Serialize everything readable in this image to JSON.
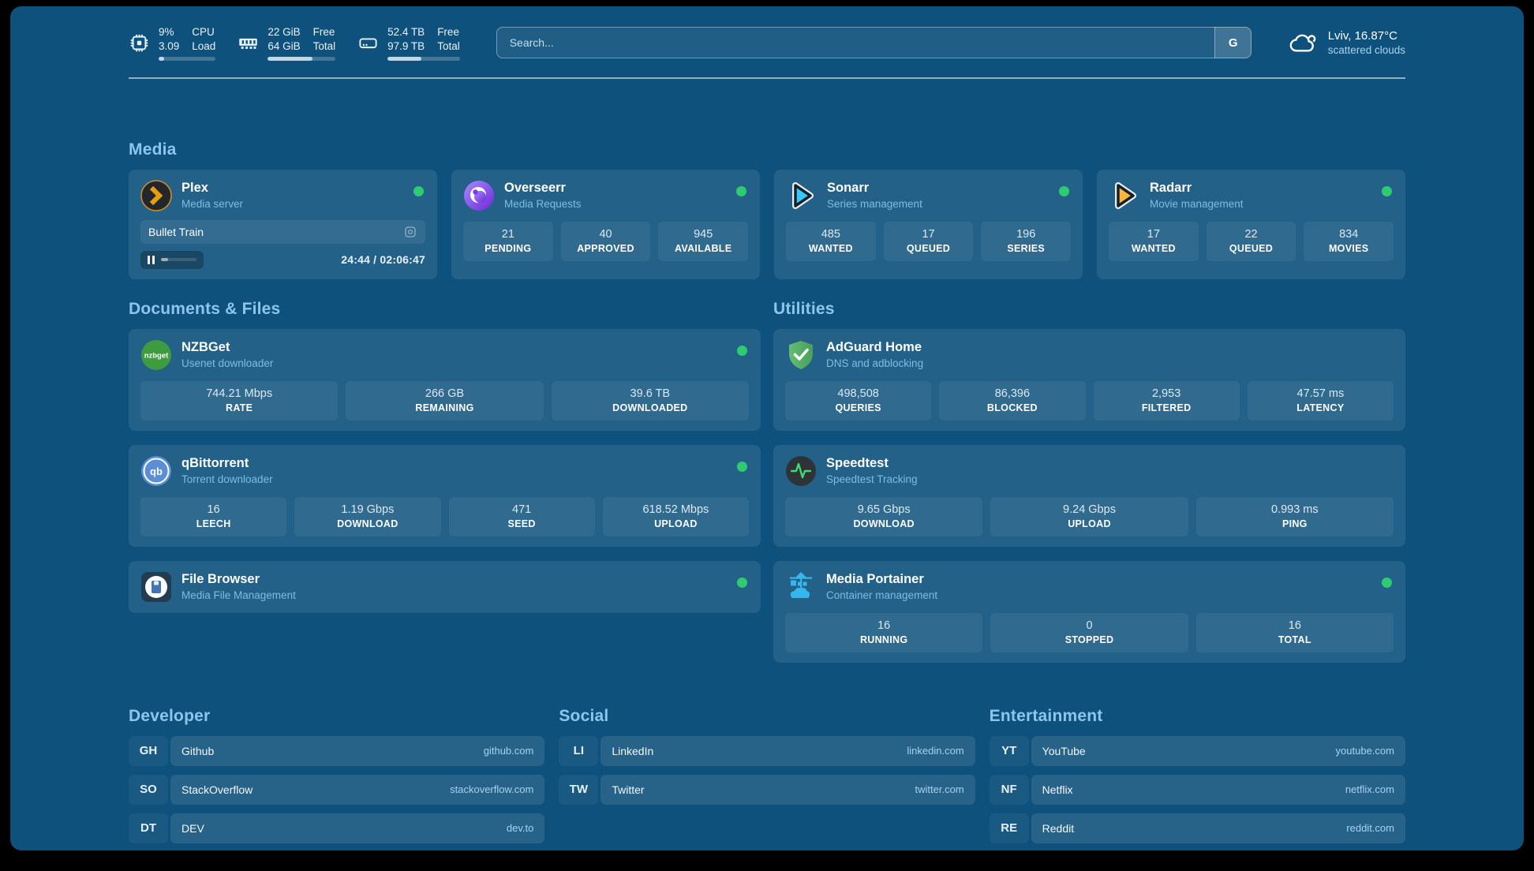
{
  "colors": {
    "background": "#0E517C",
    "status_online": "#2ECC71",
    "accent": "#8CC6EC"
  },
  "header": {
    "stats": [
      {
        "icon": "cpu-icon",
        "line1a": "9%",
        "line2a": "3.09",
        "line1b": "CPU",
        "line2b": "Load",
        "progress": 9
      },
      {
        "icon": "memory-icon",
        "line1a": "22 GiB",
        "line2a": "64 GiB",
        "line1b": "Free",
        "line2b": "Total",
        "progress": 66
      },
      {
        "icon": "disk-icon",
        "line1a": "52.4 TB",
        "line2a": "97.9 TB",
        "line1b": "Free",
        "line2b": "Total",
        "progress": 47
      }
    ],
    "search": {
      "placeholder": "Search...",
      "button_label": "G"
    },
    "weather": {
      "location": "Lviv, 16.87°C",
      "condition": "scattered clouds"
    }
  },
  "sections": {
    "media": "Media",
    "documents": "Documents & Files",
    "utilities": "Utilities"
  },
  "services": {
    "plex": {
      "name": "Plex",
      "subtitle": "Media server",
      "status": "online",
      "now_playing": "Bullet Train",
      "time": "24:44 / 02:06:47",
      "progress": 20
    },
    "overseerr": {
      "name": "Overseerr",
      "subtitle": "Media Requests",
      "status": "online",
      "stats": [
        {
          "value": "21",
          "label": "PENDING"
        },
        {
          "value": "40",
          "label": "APPROVED"
        },
        {
          "value": "945",
          "label": "AVAILABLE"
        }
      ]
    },
    "sonarr": {
      "name": "Sonarr",
      "subtitle": "Series management",
      "status": "online",
      "stats": [
        {
          "value": "485",
          "label": "WANTED"
        },
        {
          "value": "17",
          "label": "QUEUED"
        },
        {
          "value": "196",
          "label": "SERIES"
        }
      ]
    },
    "radarr": {
      "name": "Radarr",
      "subtitle": "Movie management",
      "status": "online",
      "stats": [
        {
          "value": "17",
          "label": "WANTED"
        },
        {
          "value": "22",
          "label": "QUEUED"
        },
        {
          "value": "834",
          "label": "MOVIES"
        }
      ]
    },
    "nzbget": {
      "name": "NZBGet",
      "subtitle": "Usenet downloader",
      "status": "online",
      "stats": [
        {
          "value": "744.21 Mbps",
          "label": "RATE"
        },
        {
          "value": "266 GB",
          "label": "REMAINING"
        },
        {
          "value": "39.6 TB",
          "label": "DOWNLOADED"
        }
      ]
    },
    "qbittorrent": {
      "name": "qBittorrent",
      "subtitle": "Torrent downloader",
      "status": "online",
      "stats": [
        {
          "value": "16",
          "label": "LEECH"
        },
        {
          "value": "1.19 Gbps",
          "label": "DOWNLOAD"
        },
        {
          "value": "471",
          "label": "SEED"
        },
        {
          "value": "618.52 Mbps",
          "label": "UPLOAD"
        }
      ]
    },
    "filebrowser": {
      "name": "File Browser",
      "subtitle": "Media File Management",
      "status": "online"
    },
    "adguard": {
      "name": "AdGuard Home",
      "subtitle": "DNS and adblocking",
      "stats": [
        {
          "value": "498,508",
          "label": "QUERIES"
        },
        {
          "value": "86,396",
          "label": "BLOCKED"
        },
        {
          "value": "2,953",
          "label": "FILTERED"
        },
        {
          "value": "47.57 ms",
          "label": "LATENCY"
        }
      ]
    },
    "speedtest": {
      "name": "Speedtest",
      "subtitle": "Speedtest Tracking",
      "stats": [
        {
          "value": "9.65 Gbps",
          "label": "DOWNLOAD"
        },
        {
          "value": "9.24 Gbps",
          "label": "UPLOAD"
        },
        {
          "value": "0.993 ms",
          "label": "PING"
        }
      ]
    },
    "portainer": {
      "name": "Media Portainer",
      "subtitle": "Container management",
      "status": "online",
      "stats": [
        {
          "value": "16",
          "label": "RUNNING"
        },
        {
          "value": "0",
          "label": "STOPPED"
        },
        {
          "value": "16",
          "label": "TOTAL"
        }
      ]
    }
  },
  "bookmarks": [
    {
      "title": "Developer",
      "links": [
        {
          "abbr": "GH",
          "name": "Github",
          "domain": "github.com"
        },
        {
          "abbr": "SO",
          "name": "StackOverflow",
          "domain": "stackoverflow.com"
        },
        {
          "abbr": "DT",
          "name": "DEV",
          "domain": "dev.to"
        }
      ]
    },
    {
      "title": "Social",
      "links": [
        {
          "abbr": "LI",
          "name": "LinkedIn",
          "domain": "linkedin.com"
        },
        {
          "abbr": "TW",
          "name": "Twitter",
          "domain": "twitter.com"
        }
      ]
    },
    {
      "title": "Entertainment",
      "links": [
        {
          "abbr": "YT",
          "name": "YouTube",
          "domain": "youtube.com"
        },
        {
          "abbr": "NF",
          "name": "Netflix",
          "domain": "netflix.com"
        },
        {
          "abbr": "RE",
          "name": "Reddit",
          "domain": "reddit.com"
        }
      ]
    }
  ]
}
